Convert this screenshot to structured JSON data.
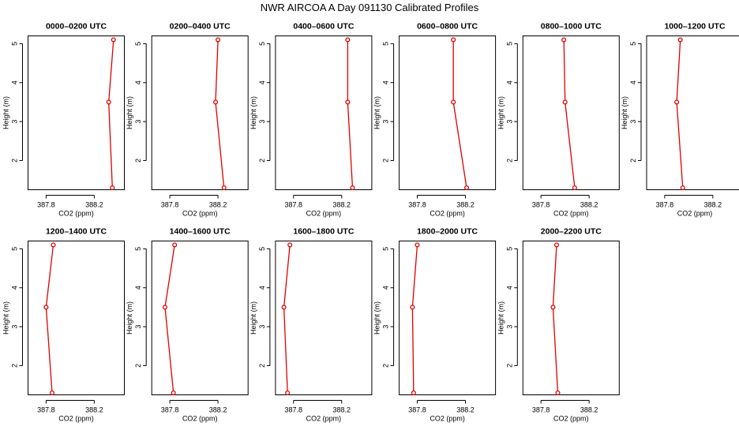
{
  "page_title": "NWR AIRCOA A  Day 091130  Calibrated Profiles",
  "chart_data": [
    {
      "type": "line",
      "title": "0000–0200 UTC",
      "xlabel": "CO2 (ppm)",
      "ylabel": "Height (m)",
      "x_ticks": [
        387.8,
        388.2
      ],
      "y_ticks": [
        2,
        3,
        4,
        5
      ],
      "xlim": [
        387.65,
        388.45
      ],
      "ylim": [
        1.25,
        5.2
      ],
      "series": [
        {
          "name": "profile",
          "x": [
            388.35,
            388.32,
            388.36
          ],
          "y": [
            1.3,
            3.5,
            5.1
          ]
        }
      ]
    },
    {
      "type": "line",
      "title": "0200–0400 UTC",
      "xlabel": "CO2 (ppm)",
      "ylabel": "Height (m)",
      "x_ticks": [
        387.8,
        388.2
      ],
      "y_ticks": [
        2,
        3,
        4,
        5
      ],
      "xlim": [
        387.65,
        388.45
      ],
      "ylim": [
        1.25,
        5.2
      ],
      "series": [
        {
          "name": "profile",
          "x": [
            388.25,
            388.18,
            388.2
          ],
          "y": [
            1.3,
            3.5,
            5.1
          ]
        }
      ]
    },
    {
      "type": "line",
      "title": "0400–0600 UTC",
      "xlabel": "CO2 (ppm)",
      "ylabel": "Height (m)",
      "x_ticks": [
        387.8,
        388.2
      ],
      "y_ticks": [
        2,
        3,
        4,
        5
      ],
      "xlim": [
        387.65,
        388.45
      ],
      "ylim": [
        1.25,
        5.2
      ],
      "series": [
        {
          "name": "profile",
          "x": [
            388.29,
            388.25,
            388.25
          ],
          "y": [
            1.3,
            3.5,
            5.1
          ]
        }
      ]
    },
    {
      "type": "line",
      "title": "0600–0800 UTC",
      "xlabel": "CO2 (ppm)",
      "ylabel": "Height (m)",
      "x_ticks": [
        387.8,
        388.2
      ],
      "y_ticks": [
        2,
        3,
        4,
        5
      ],
      "xlim": [
        387.65,
        388.45
      ],
      "ylim": [
        1.25,
        5.2
      ],
      "series": [
        {
          "name": "profile",
          "x": [
            388.21,
            388.1,
            388.1
          ],
          "y": [
            1.3,
            3.5,
            5.1
          ]
        }
      ]
    },
    {
      "type": "line",
      "title": "0800–1000 UTC",
      "xlabel": "CO2 (ppm)",
      "ylabel": "Height (m)",
      "x_ticks": [
        387.8,
        388.2
      ],
      "y_ticks": [
        2,
        3,
        4,
        5
      ],
      "xlim": [
        387.65,
        388.45
      ],
      "ylim": [
        1.25,
        5.2
      ],
      "series": [
        {
          "name": "profile",
          "x": [
            388.08,
            388.0,
            387.99
          ],
          "y": [
            1.3,
            3.5,
            5.1
          ]
        }
      ]
    },
    {
      "type": "line",
      "title": "1000–1200 UTC",
      "xlabel": "CO2 (ppm)",
      "ylabel": "Height (m)",
      "x_ticks": [
        387.8,
        388.2
      ],
      "y_ticks": [
        2,
        3,
        4,
        5
      ],
      "xlim": [
        387.65,
        388.45
      ],
      "ylim": [
        1.25,
        5.2
      ],
      "series": [
        {
          "name": "profile",
          "x": [
            387.95,
            387.9,
            387.93
          ],
          "y": [
            1.3,
            3.5,
            5.1
          ]
        }
      ]
    },
    {
      "type": "line",
      "title": "1200–1400 UTC",
      "xlabel": "CO2 (ppm)",
      "ylabel": "Height (m)",
      "x_ticks": [
        387.8,
        388.2
      ],
      "y_ticks": [
        2,
        3,
        4,
        5
      ],
      "xlim": [
        387.65,
        388.45
      ],
      "ylim": [
        1.25,
        5.2
      ],
      "series": [
        {
          "name": "profile",
          "x": [
            387.85,
            387.8,
            387.86
          ],
          "y": [
            1.3,
            3.5,
            5.1
          ]
        }
      ]
    },
    {
      "type": "line",
      "title": "1400–1600 UTC",
      "xlabel": "CO2 (ppm)",
      "ylabel": "Height (m)",
      "x_ticks": [
        387.8,
        388.2
      ],
      "y_ticks": [
        2,
        3,
        4,
        5
      ],
      "xlim": [
        387.65,
        388.45
      ],
      "ylim": [
        1.25,
        5.2
      ],
      "series": [
        {
          "name": "profile",
          "x": [
            387.83,
            387.76,
            387.84
          ],
          "y": [
            1.3,
            3.5,
            5.1
          ]
        }
      ]
    },
    {
      "type": "line",
      "title": "1600–1800 UTC",
      "xlabel": "CO2 (ppm)",
      "ylabel": "Height (m)",
      "x_ticks": [
        387.8,
        388.2
      ],
      "y_ticks": [
        2,
        3,
        4,
        5
      ],
      "xlim": [
        387.65,
        388.45
      ],
      "ylim": [
        1.25,
        5.2
      ],
      "series": [
        {
          "name": "profile",
          "x": [
            387.75,
            387.72,
            387.77
          ],
          "y": [
            1.3,
            3.5,
            5.1
          ]
        }
      ]
    },
    {
      "type": "line",
      "title": "1800–2000 UTC",
      "xlabel": "CO2 (ppm)",
      "ylabel": "Height (m)",
      "x_ticks": [
        387.8,
        388.2
      ],
      "y_ticks": [
        2,
        3,
        4,
        5
      ],
      "xlim": [
        387.65,
        388.45
      ],
      "ylim": [
        1.25,
        5.2
      ],
      "series": [
        {
          "name": "profile",
          "x": [
            387.77,
            387.76,
            387.8
          ],
          "y": [
            1.3,
            3.5,
            5.1
          ]
        }
      ]
    },
    {
      "type": "line",
      "title": "2000–2200 UTC",
      "xlabel": "CO2 (ppm)",
      "ylabel": "Height (m)",
      "x_ticks": [
        387.8,
        388.2
      ],
      "y_ticks": [
        2,
        3,
        4,
        5
      ],
      "xlim": [
        387.65,
        388.45
      ],
      "ylim": [
        1.25,
        5.2
      ],
      "series": [
        {
          "name": "profile",
          "x": [
            387.94,
            387.9,
            387.93
          ],
          "y": [
            1.3,
            3.5,
            5.1
          ]
        }
      ]
    }
  ]
}
